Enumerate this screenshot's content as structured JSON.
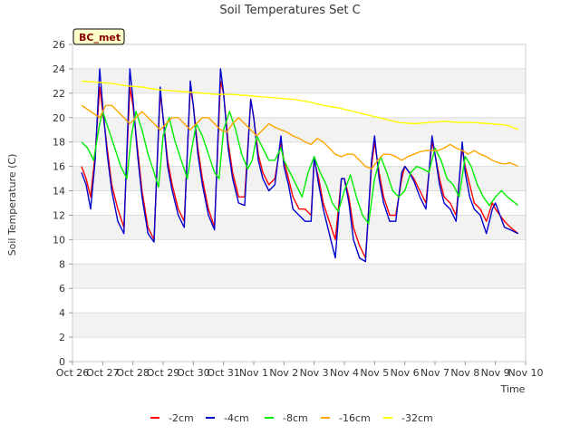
{
  "chart_data": {
    "type": "line",
    "title": "Soil Temperatures Set C",
    "xlabel": "Time",
    "ylabel": "Soil Temperature (C)",
    "badge": "BC_met",
    "ylim": [
      0,
      26
    ],
    "yticks": [
      0,
      2,
      4,
      6,
      8,
      10,
      12,
      14,
      16,
      18,
      20,
      22,
      24,
      26
    ],
    "xlim": [
      0,
      15
    ],
    "xtick_labels": [
      "Oct 26",
      "Oct 27",
      "Oct 28",
      "Oct 29",
      "Oct 30",
      "Oct 31",
      "Nov 1",
      "Nov 2",
      "Nov 3",
      "Nov 4",
      "Nov 5",
      "Nov 6",
      "Nov 7",
      "Nov 8",
      "Nov 9",
      "Nov 10"
    ],
    "series": [
      {
        "name": "-2cm",
        "color": "#ff0000",
        "x": [
          0.3,
          0.45,
          0.6,
          0.75,
          0.9,
          1.0,
          1.15,
          1.3,
          1.5,
          1.7,
          1.9,
          2.0,
          2.15,
          2.3,
          2.5,
          2.7,
          2.9,
          3.0,
          3.15,
          3.3,
          3.5,
          3.7,
          3.9,
          4.0,
          4.15,
          4.3,
          4.5,
          4.7,
          4.9,
          5.0,
          5.15,
          5.3,
          5.5,
          5.7,
          5.9,
          6.0,
          6.15,
          6.3,
          6.5,
          6.7,
          6.9,
          7.0,
          7.15,
          7.3,
          7.5,
          7.7,
          7.9,
          8.0,
          8.15,
          8.3,
          8.5,
          8.7,
          8.9,
          9.0,
          9.15,
          9.3,
          9.5,
          9.7,
          9.9,
          10.0,
          10.15,
          10.3,
          10.5,
          10.7,
          10.9,
          11.0,
          11.15,
          11.3,
          11.5,
          11.7,
          11.9,
          12.0,
          12.15,
          12.3,
          12.5,
          12.7,
          12.9,
          13.0,
          13.15,
          13.3,
          13.5,
          13.7,
          13.9,
          14.0,
          14.15,
          14.3,
          14.5,
          14.75
        ],
        "y": [
          16.0,
          15.0,
          13.5,
          17.0,
          22.5,
          20.5,
          17.5,
          14.5,
          12.5,
          11.0,
          22.5,
          21.0,
          17.5,
          14.0,
          11.0,
          10.0,
          22.0,
          20.0,
          16.5,
          14.5,
          12.5,
          11.5,
          22.5,
          21.0,
          17.5,
          15.0,
          12.5,
          11.0,
          23.0,
          22.0,
          18.0,
          15.5,
          13.5,
          13.5,
          21.5,
          20.0,
          17.0,
          15.5,
          14.5,
          15.0,
          18.0,
          16.5,
          15.0,
          13.5,
          12.5,
          12.5,
          12.0,
          16.5,
          15.0,
          13.0,
          11.5,
          10.0,
          15.0,
          15.0,
          13.5,
          11.0,
          9.5,
          8.5,
          16.0,
          18.0,
          15.5,
          13.5,
          12.0,
          12.0,
          15.0,
          16.0,
          15.5,
          15.0,
          14.0,
          13.0,
          18.0,
          17.0,
          15.0,
          13.5,
          13.0,
          12.0,
          17.5,
          16.0,
          14.5,
          13.0,
          12.5,
          11.5,
          13.0,
          12.5,
          12.0,
          11.5,
          11.0,
          10.5
        ]
      },
      {
        "name": "-4cm",
        "color": "#0000cd",
        "x": [
          0.3,
          0.45,
          0.6,
          0.75,
          0.9,
          1.0,
          1.15,
          1.3,
          1.5,
          1.7,
          1.9,
          2.0,
          2.15,
          2.3,
          2.5,
          2.7,
          2.9,
          3.0,
          3.15,
          3.3,
          3.5,
          3.7,
          3.9,
          4.0,
          4.15,
          4.3,
          4.5,
          4.7,
          4.9,
          5.0,
          5.15,
          5.3,
          5.5,
          5.7,
          5.9,
          6.0,
          6.15,
          6.3,
          6.5,
          6.7,
          6.9,
          7.0,
          7.15,
          7.3,
          7.5,
          7.7,
          7.9,
          8.0,
          8.15,
          8.3,
          8.5,
          8.7,
          8.9,
          9.0,
          9.15,
          9.3,
          9.5,
          9.7,
          9.9,
          10.0,
          10.15,
          10.3,
          10.5,
          10.7,
          10.9,
          11.0,
          11.15,
          11.3,
          11.5,
          11.7,
          11.9,
          12.0,
          12.15,
          12.3,
          12.5,
          12.7,
          12.9,
          13.0,
          13.15,
          13.3,
          13.5,
          13.7,
          13.9,
          14.0,
          14.15,
          14.3,
          14.5,
          14.75
        ],
        "y": [
          15.5,
          14.5,
          12.5,
          16.5,
          24.0,
          21.0,
          17.0,
          14.0,
          11.5,
          10.5,
          24.0,
          21.5,
          17.0,
          13.5,
          10.5,
          9.8,
          22.5,
          20.0,
          16.0,
          14.0,
          12.0,
          11.0,
          23.0,
          21.0,
          17.0,
          14.5,
          12.0,
          10.8,
          24.0,
          22.0,
          17.5,
          15.0,
          13.0,
          12.8,
          21.5,
          20.0,
          16.5,
          15.0,
          14.0,
          14.5,
          18.5,
          16.0,
          14.5,
          12.5,
          12.0,
          11.5,
          11.5,
          16.8,
          14.5,
          12.5,
          10.5,
          8.5,
          15.0,
          15.0,
          13.0,
          10.0,
          8.5,
          8.2,
          16.5,
          18.5,
          15.0,
          13.0,
          11.5,
          11.5,
          15.5,
          16.0,
          15.5,
          14.8,
          13.5,
          12.5,
          18.5,
          17.0,
          14.5,
          13.0,
          12.5,
          11.5,
          18.0,
          15.5,
          13.5,
          12.5,
          12.0,
          10.5,
          12.5,
          13.0,
          12.0,
          11.0,
          10.8,
          10.5
        ]
      },
      {
        "name": "-8cm",
        "color": "#00ee00",
        "x": [
          0.3,
          0.5,
          0.7,
          0.9,
          1.0,
          1.2,
          1.4,
          1.6,
          1.8,
          1.95,
          2.1,
          2.3,
          2.5,
          2.7,
          2.85,
          3.0,
          3.2,
          3.4,
          3.6,
          3.8,
          3.95,
          4.1,
          4.3,
          4.5,
          4.7,
          4.85,
          5.0,
          5.2,
          5.4,
          5.6,
          5.8,
          5.95,
          6.1,
          6.3,
          6.5,
          6.7,
          6.9,
          7.0,
          7.2,
          7.4,
          7.6,
          7.8,
          8.0,
          8.2,
          8.4,
          8.6,
          8.8,
          9.0,
          9.2,
          9.4,
          9.6,
          9.8,
          10.0,
          10.2,
          10.4,
          10.6,
          10.8,
          11.0,
          11.2,
          11.4,
          11.6,
          11.8,
          12.0,
          12.2,
          12.4,
          12.6,
          12.8,
          13.0,
          13.2,
          13.4,
          13.6,
          13.8,
          14.0,
          14.2,
          14.4,
          14.75
        ],
        "y": [
          18.0,
          17.5,
          16.5,
          19.5,
          20.5,
          19.0,
          17.5,
          16.0,
          15.0,
          18.5,
          20.5,
          19.0,
          17.0,
          15.5,
          14.3,
          18.5,
          20.0,
          18.0,
          16.5,
          15.0,
          17.5,
          19.5,
          18.5,
          17.0,
          15.5,
          15.0,
          19.0,
          20.5,
          19.0,
          17.0,
          15.8,
          16.5,
          18.5,
          17.5,
          16.5,
          16.5,
          17.5,
          16.5,
          15.5,
          14.5,
          13.5,
          15.5,
          16.8,
          15.5,
          14.5,
          13.0,
          12.3,
          14.0,
          15.3,
          13.5,
          12.0,
          11.3,
          15.0,
          16.8,
          15.5,
          14.0,
          13.5,
          14.0,
          15.5,
          16.0,
          15.8,
          15.5,
          17.5,
          16.5,
          15.0,
          14.5,
          13.5,
          16.8,
          16.0,
          14.5,
          13.5,
          12.8,
          13.5,
          14.0,
          13.5,
          12.8
        ]
      },
      {
        "name": "-16cm",
        "color": "#ffa500",
        "x": [
          0.3,
          0.6,
          0.9,
          1.1,
          1.3,
          1.5,
          1.7,
          1.9,
          2.1,
          2.3,
          2.5,
          2.7,
          2.9,
          3.1,
          3.3,
          3.5,
          3.7,
          3.9,
          4.1,
          4.3,
          4.5,
          4.7,
          4.9,
          5.1,
          5.3,
          5.5,
          5.7,
          5.9,
          6.1,
          6.3,
          6.5,
          6.7,
          6.9,
          7.1,
          7.3,
          7.5,
          7.7,
          7.9,
          8.1,
          8.3,
          8.5,
          8.7,
          8.9,
          9.1,
          9.3,
          9.5,
          9.7,
          9.9,
          10.1,
          10.3,
          10.5,
          10.7,
          10.9,
          11.1,
          11.3,
          11.5,
          11.7,
          11.9,
          12.1,
          12.3,
          12.5,
          12.7,
          12.9,
          13.1,
          13.3,
          13.5,
          13.7,
          13.9,
          14.1,
          14.3,
          14.5,
          14.75
        ],
        "y": [
          21.0,
          20.5,
          20.0,
          21.0,
          21.0,
          20.5,
          20.0,
          19.5,
          20.0,
          20.5,
          20.0,
          19.5,
          19.0,
          19.5,
          20.0,
          20.0,
          19.5,
          19.0,
          19.5,
          20.0,
          20.0,
          19.5,
          19.0,
          18.8,
          19.5,
          20.0,
          19.5,
          19.0,
          18.5,
          19.0,
          19.5,
          19.2,
          19.0,
          18.8,
          18.5,
          18.3,
          18.0,
          17.8,
          18.3,
          18.0,
          17.5,
          17.0,
          16.8,
          17.0,
          17.0,
          16.5,
          16.0,
          15.8,
          16.5,
          17.0,
          17.0,
          16.8,
          16.5,
          16.8,
          17.0,
          17.2,
          17.3,
          17.3,
          17.3,
          17.5,
          17.8,
          17.5,
          17.3,
          17.0,
          17.3,
          17.0,
          16.8,
          16.5,
          16.3,
          16.2,
          16.3,
          16.0
        ]
      },
      {
        "name": "-32cm",
        "color": "#ffff00",
        "x": [
          0.3,
          0.8,
          1.3,
          1.8,
          2.3,
          2.8,
          3.3,
          3.8,
          4.3,
          4.8,
          5.3,
          5.8,
          6.3,
          6.8,
          7.3,
          7.8,
          8.3,
          8.8,
          9.3,
          9.8,
          10.3,
          10.8,
          11.3,
          11.8,
          12.3,
          12.8,
          13.3,
          13.8,
          14.3,
          14.5,
          14.75
        ],
        "y": [
          23.0,
          22.9,
          22.8,
          22.6,
          22.5,
          22.3,
          22.2,
          22.1,
          22.0,
          21.9,
          21.9,
          21.8,
          21.7,
          21.6,
          21.5,
          21.3,
          21.0,
          20.8,
          20.5,
          20.2,
          19.9,
          19.6,
          19.5,
          19.6,
          19.7,
          19.6,
          19.6,
          19.5,
          19.4,
          19.3,
          19.0
        ]
      }
    ]
  }
}
